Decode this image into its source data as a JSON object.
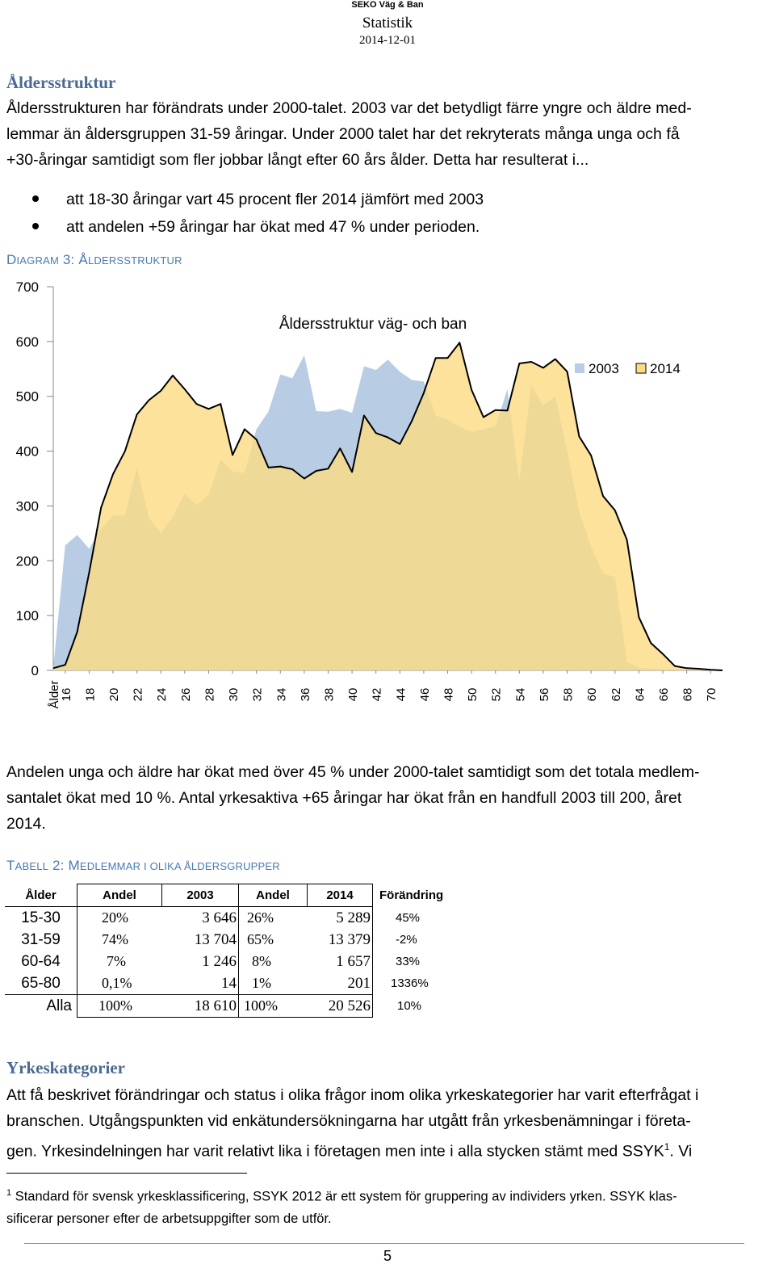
{
  "header": {
    "org": "SEKO Väg & Ban",
    "title": "Statistik",
    "date": "2014-12-01"
  },
  "section1": {
    "heading": "Åldersstruktur",
    "lines": [
      "Åldersstrukturen har förändrats under 2000-talet. 2003 var det betydligt färre yngre och äldre med-",
      "lemmar än åldersgruppen 31-59 åringar. Under 2000 talet har det rekryterats många unga och få",
      "+30-åringar samtidigt som fler jobbar långt efter 60 års ålder. Detta har resulterat i..."
    ],
    "bullets": [
      "att 18-30 åringar vart 45 procent fler 2014 jämfört med 2003",
      "att andelen +59 åringar har ökat med 47 % under perioden."
    ]
  },
  "diagram_caption": {
    "first": "D",
    "rest": "IAGRAM",
    "num": " 3: Å",
    "rest2": "LDERSSTRUKTUR"
  },
  "chart_data": {
    "type": "area",
    "title": "Åldersstruktur väg- och ban",
    "xlabel": "Ålder",
    "ylim": [
      0,
      700
    ],
    "yticks": [
      "0",
      "100",
      "200",
      "300",
      "400",
      "500",
      "600",
      "700"
    ],
    "xtick_labels": [
      "16",
      "18",
      "20",
      "22",
      "24",
      "26",
      "28",
      "30",
      "32",
      "34",
      "36",
      "38",
      "40",
      "42",
      "44",
      "46",
      "48",
      "50",
      "52",
      "54",
      "56",
      "58",
      "60",
      "62",
      "64",
      "66",
      "68",
      "70"
    ],
    "x": [
      15,
      16,
      17,
      18,
      19,
      20,
      21,
      22,
      23,
      24,
      25,
      26,
      27,
      28,
      29,
      30,
      31,
      32,
      33,
      34,
      35,
      36,
      37,
      38,
      39,
      40,
      41,
      42,
      43,
      44,
      45,
      46,
      47,
      48,
      49,
      50,
      51,
      52,
      53,
      54,
      55,
      56,
      57,
      58,
      59,
      60,
      61,
      62,
      63,
      64,
      65,
      66,
      67,
      68,
      69,
      70,
      71
    ],
    "series": [
      {
        "name": "2003",
        "color": "#b8cce4",
        "values": [
          5,
          228,
          247,
          222,
          258,
          282,
          283,
          370,
          279,
          250,
          280,
          322,
          302,
          320,
          385,
          363,
          360,
          440,
          472,
          540,
          533,
          575,
          473,
          472,
          477,
          470,
          555,
          548,
          567,
          545,
          530,
          527,
          465,
          457,
          445,
          435,
          440,
          445,
          513,
          345,
          520,
          483,
          500,
          400,
          290,
          225,
          177,
          170,
          15,
          5,
          3,
          2,
          2,
          1,
          0,
          0,
          0
        ]
      },
      {
        "name": "2014",
        "color": "#fbdc85",
        "values": [
          4,
          10,
          70,
          178,
          297,
          358,
          400,
          467,
          493,
          510,
          538,
          513,
          486,
          477,
          486,
          393,
          440,
          421,
          370,
          372,
          367,
          350,
          364,
          368,
          405,
          362,
          465,
          433,
          425,
          413,
          455,
          506,
          570,
          570,
          598,
          512,
          462,
          475,
          474,
          560,
          563,
          552,
          568,
          545,
          427,
          392,
          318,
          292,
          238,
          97,
          50,
          30,
          8,
          4,
          3,
          1,
          0
        ]
      }
    ]
  },
  "section2": {
    "lines": [
      "Andelen unga och äldre har ökat med över 45 % under 2000-talet samtidigt som det totala medlem-",
      "santalet ökat med 10 %. Antal yrkesaktiva +65 åringar har ökat från en handfull 2003 till 200, året",
      "2014."
    ]
  },
  "table_caption": {
    "first": "T",
    "rest": "ABELL",
    "num": " 2: M",
    "rest2": "EDLEMMAR I OLIKA ÅLDERSGRUPPER"
  },
  "table": {
    "headers": [
      "Ålder",
      "Andel",
      "2003",
      "Andel",
      "2014",
      "Förändring"
    ],
    "rows": [
      {
        "age": "15-30",
        "andel03": "20%",
        "n03": "3 646",
        "andel14": "26%",
        "n14": "5 289",
        "chg": "45%"
      },
      {
        "age": "31-59",
        "andel03": "74%",
        "n03": "13 704",
        "andel14": "65%",
        "n14": "13 379",
        "chg": "-2%"
      },
      {
        "age": "60-64",
        "andel03": "7%",
        "n03": "1 246",
        "andel14": "8%",
        "n14": "1 657",
        "chg": "33%"
      },
      {
        "age": "65-80",
        "andel03": "0,1%",
        "n03": "14",
        "andel14": "1%",
        "n14": "201",
        "chg": "1336%"
      },
      {
        "age": "Alla",
        "andel03": "100%",
        "n03": "18 610",
        "andel14": "100%",
        "n14": "20 526",
        "chg": "10%"
      }
    ]
  },
  "section3": {
    "heading": "Yrkeskategorier",
    "lines": [
      "Att få beskrivet förändringar och status i olika frågor inom olika yrkeskategorier har varit efterfrågat i",
      "branschen. Utgångspunkten vid enkätundersökningarna har utgått från yrkesbenämningar i företa-",
      "gen. Yrkesindelningen har varit relativt lika i företagen men inte i alla stycken stämt med SSYK"
    ],
    "line3_sup": "1",
    "line3_end": ". Vi"
  },
  "footnote": {
    "num": "1",
    "lines": [
      " Standard för svensk yrkesklassificering, SSYK 2012 är ett system för gruppering av individers yrken. SSYK klas-",
      "sificerar personer efter de arbetsuppgifter som de utför."
    ]
  },
  "page_number": "5"
}
